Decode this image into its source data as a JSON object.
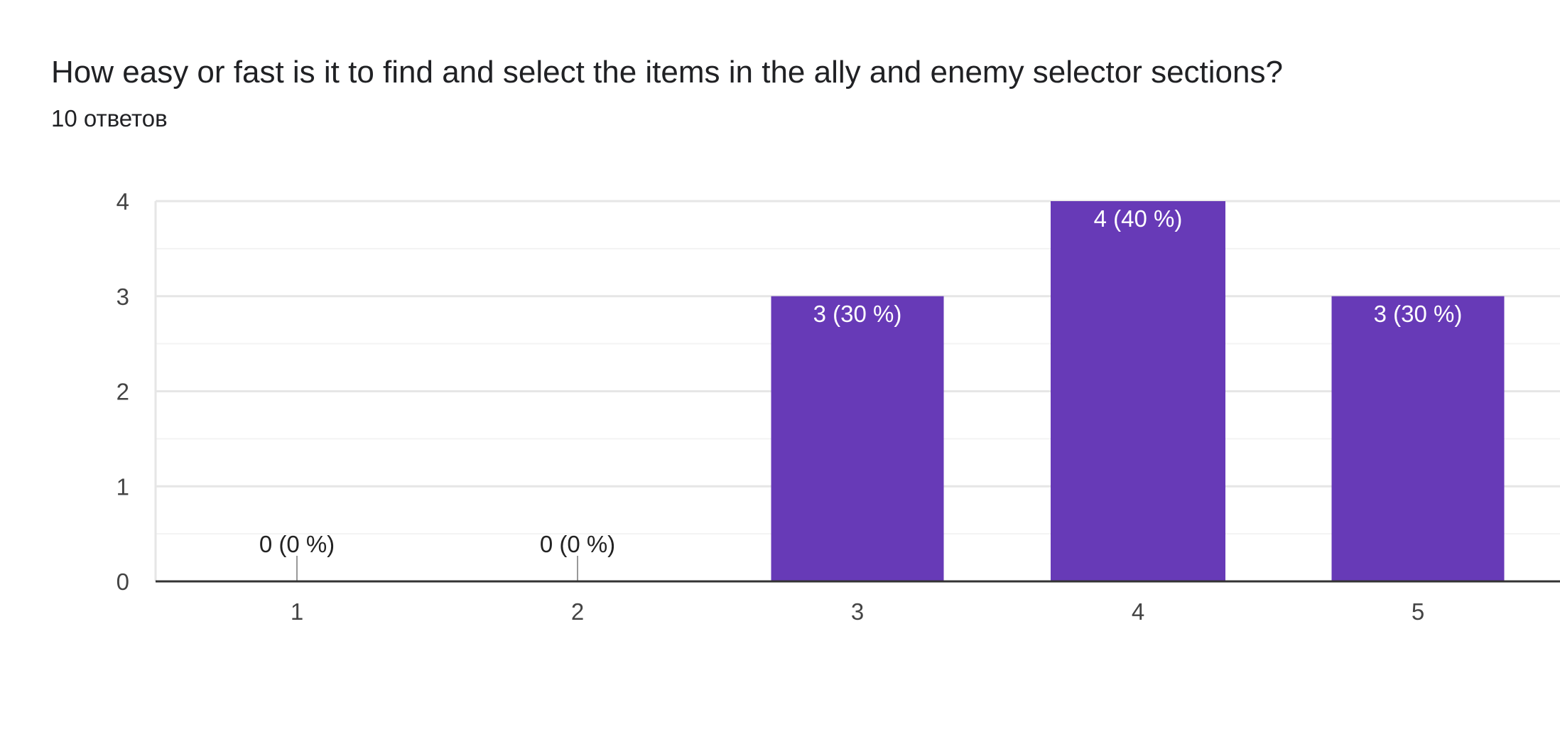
{
  "header": {
    "title": "How easy or fast is it to find and select the items in the ally and enemy selector sections?",
    "subtitle": "10 ответов"
  },
  "chart_data": {
    "type": "bar",
    "categories": [
      "1",
      "2",
      "3",
      "4",
      "5"
    ],
    "values": [
      0,
      0,
      3,
      4,
      3
    ],
    "data_labels": [
      "0 (0 %)",
      "0 (0 %)",
      "3 (30 %)",
      "4 (40 %)",
      "3 (30 %)"
    ],
    "ylim": [
      0,
      4
    ],
    "yticks": [
      "0",
      "1",
      "2",
      "3",
      "4"
    ],
    "grid": true,
    "bar_color": "#673ab7"
  }
}
